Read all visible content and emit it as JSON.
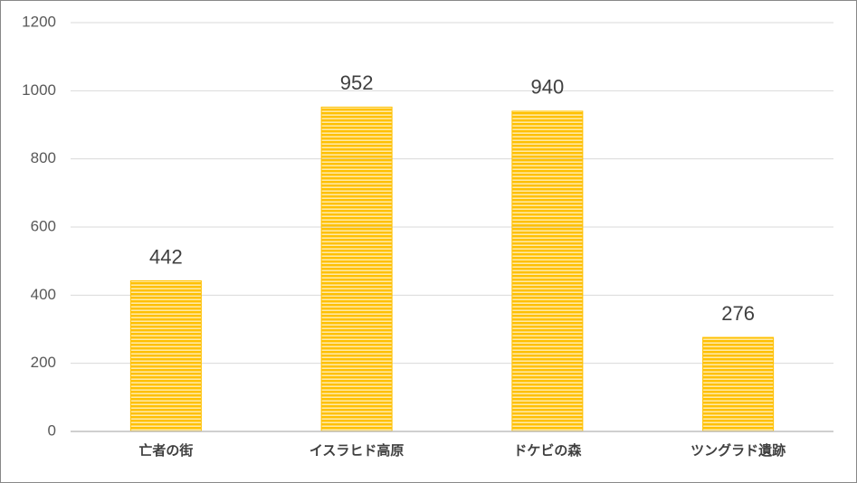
{
  "chart_data": {
    "type": "bar",
    "categories": [
      "亡者の街",
      "イスラヒド高原",
      "ドケビの森",
      "ツングラド遺跡"
    ],
    "values": [
      442,
      952,
      940,
      276
    ],
    "color": "#ffc000",
    "ylim": [
      0,
      1200
    ],
    "yticks": [
      0,
      200,
      400,
      600,
      800,
      1000,
      1200
    ],
    "grid": true
  }
}
